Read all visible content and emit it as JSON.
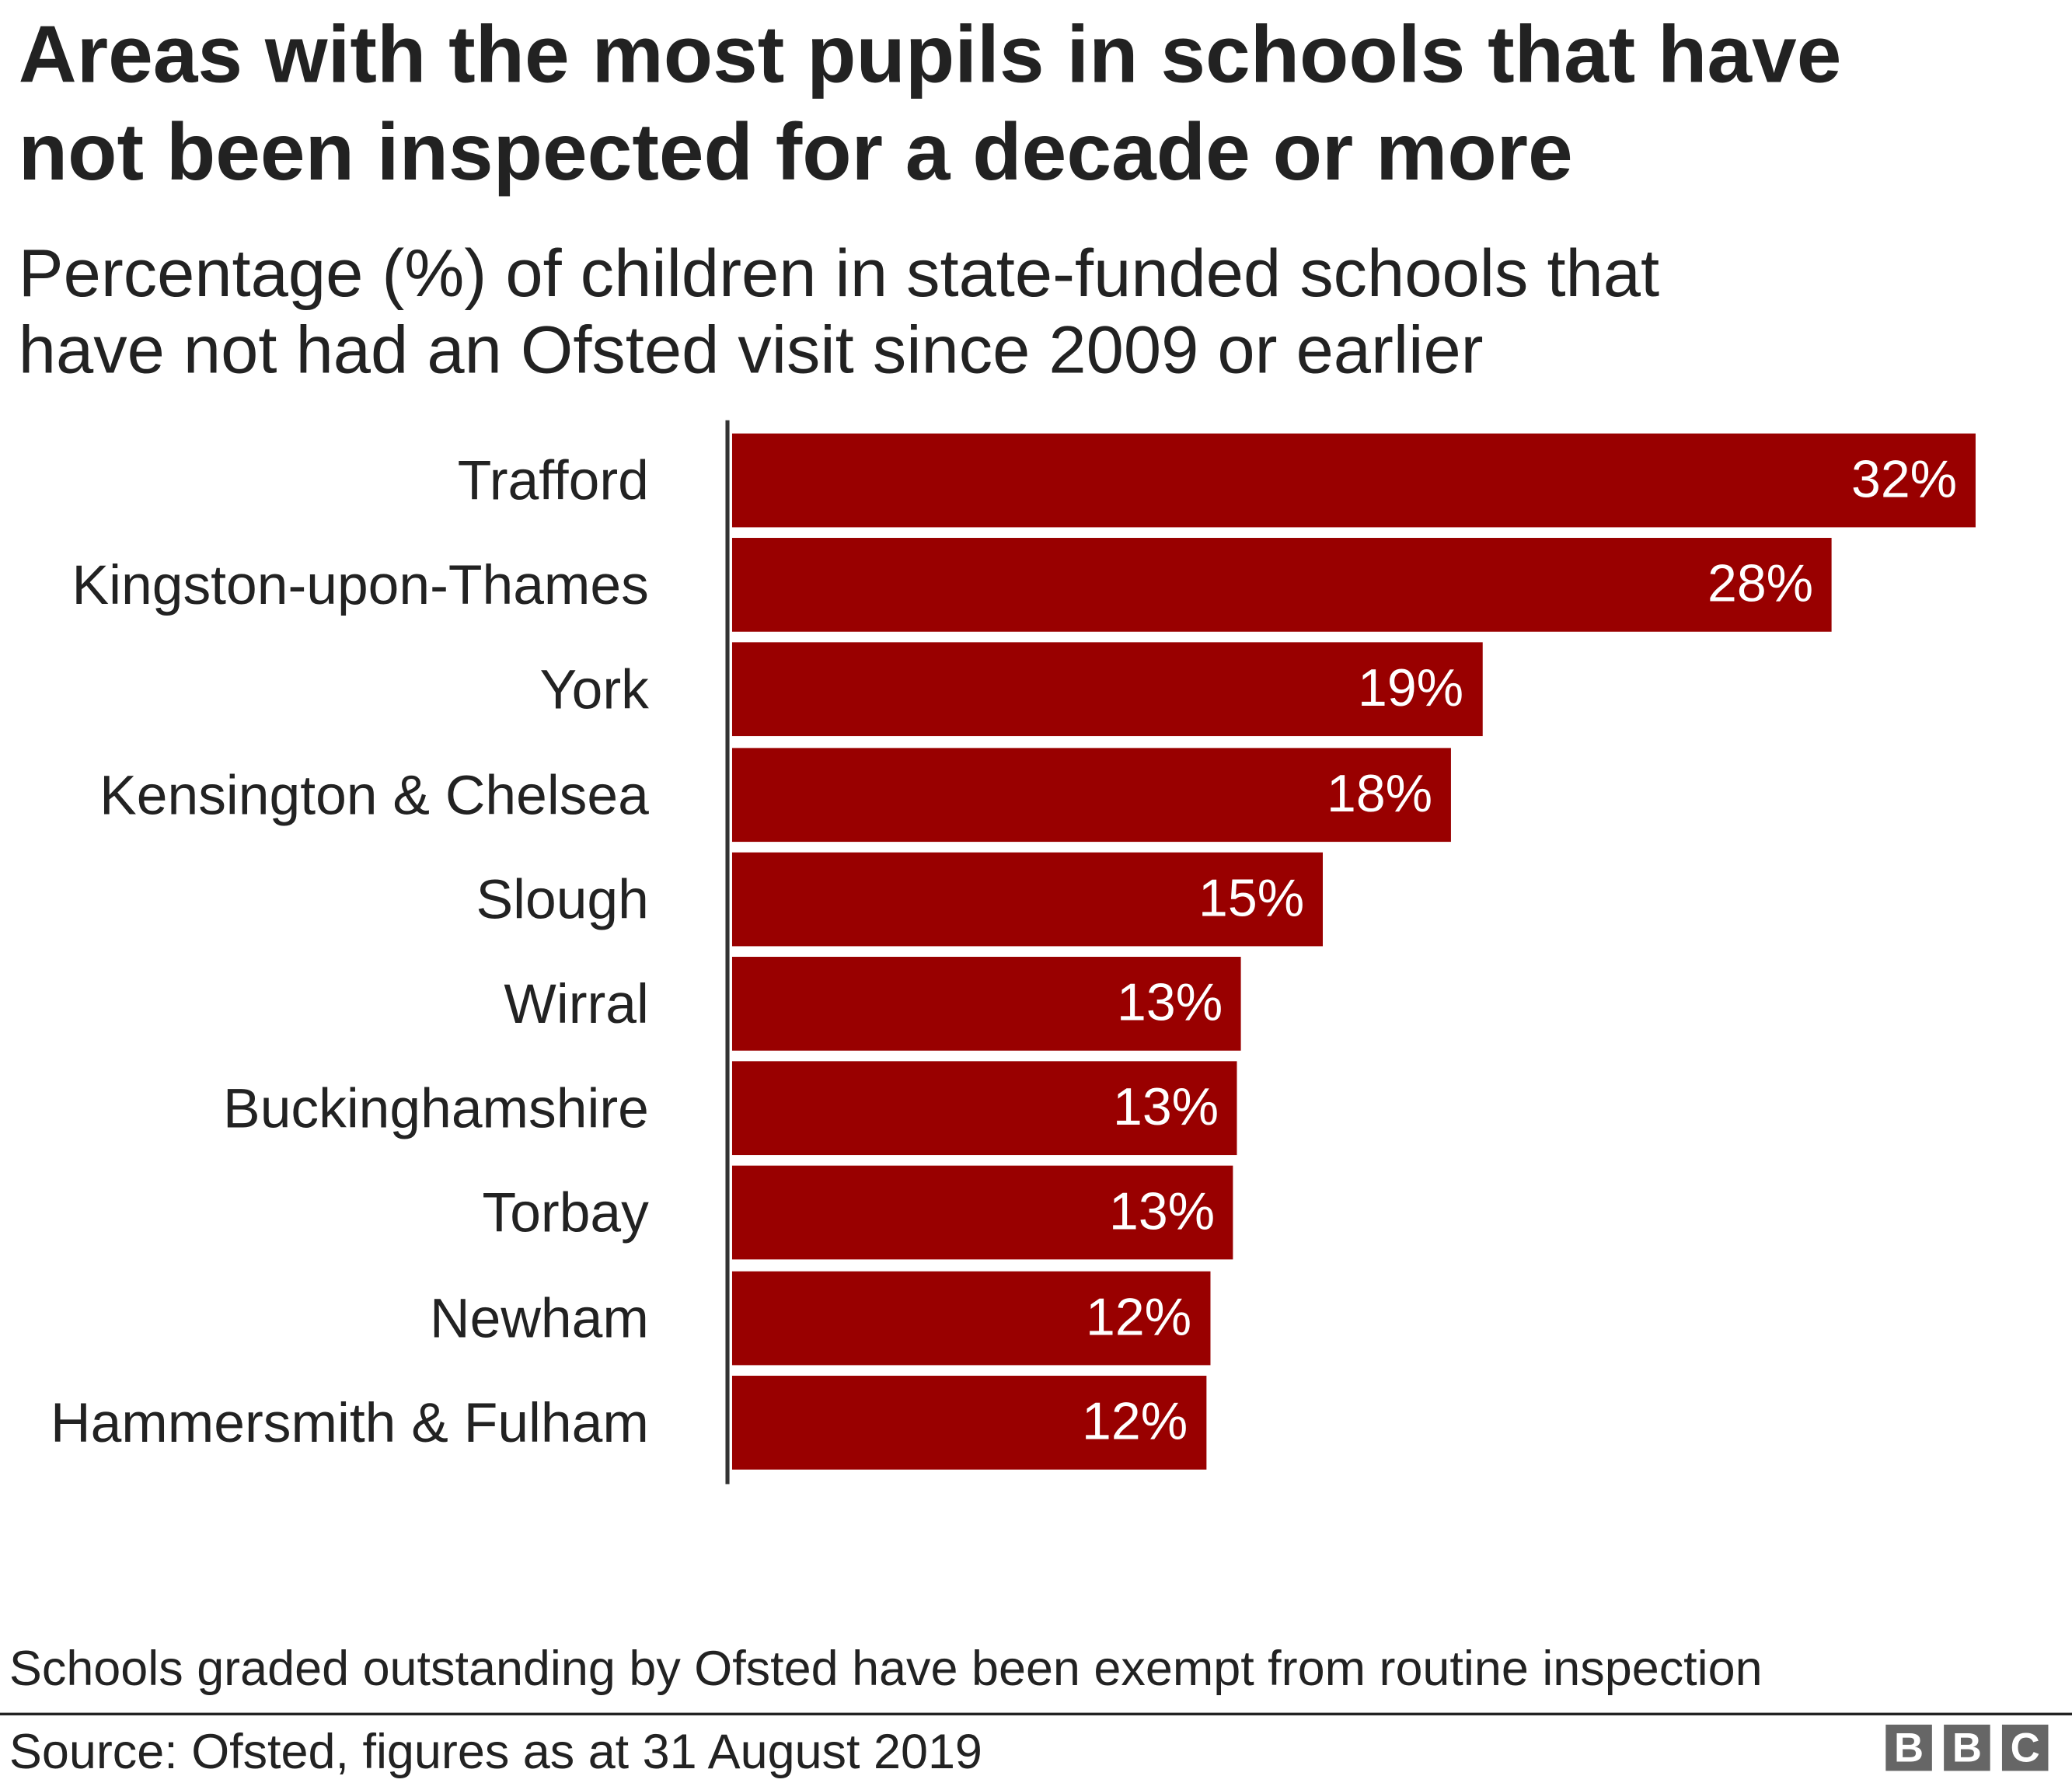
{
  "title": "Areas with the most pupils in schools that have not been inspected for a decade or more",
  "title_lines": [
    "Areas with the most pupils in schools that have",
    "not been inspected for a decade or more"
  ],
  "subtitle_lines": [
    "Percentage (%) of children in state-funded schools that",
    "have not had an Ofsted visit since 2009 or earlier"
  ],
  "note": "Schools graded outstanding by Ofsted have been exempt from routine inspection",
  "source": "Source: Ofsted, figures as at 31 August 2019",
  "logo": [
    "B",
    "B",
    "C"
  ],
  "colors": {
    "bar": "#990000",
    "text": "#222222",
    "logo": "#666666"
  },
  "chart_data": {
    "type": "bar",
    "orientation": "horizontal",
    "title": "Areas with the most pupils in schools that have not been inspected for a decade or more",
    "subtitle": "Percentage (%) of children in state-funded schools that have not had an Ofsted visit since 2009 or earlier",
    "xlabel": "",
    "ylabel": "",
    "xlim": [
      0,
      32
    ],
    "grid": false,
    "categories": [
      "Trafford",
      "Kingston-upon-Thames",
      "York",
      "Kensington & Chelsea",
      "Slough",
      "Wirral",
      "Buckinghamshire",
      "Torbay",
      "Newham",
      "Hammersmith & Fulham"
    ],
    "values": [
      32.0,
      28.3,
      19.3,
      18.5,
      15.2,
      13.1,
      13.0,
      12.9,
      12.3,
      12.2
    ],
    "labels": [
      "32%",
      "28%",
      "19%",
      "18%",
      "15%",
      "13%",
      "13%",
      "13%",
      "12%",
      "12%"
    ]
  }
}
